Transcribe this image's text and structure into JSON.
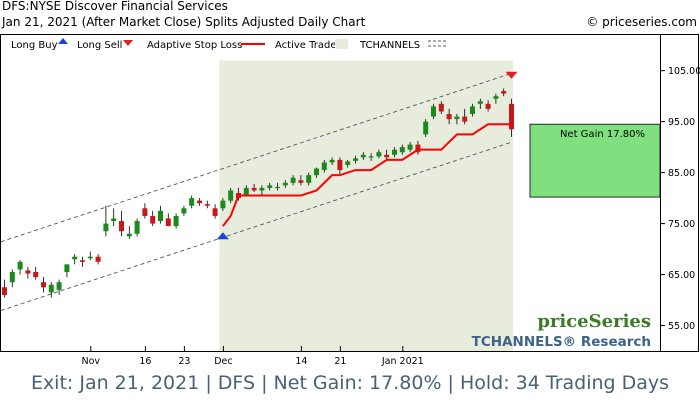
{
  "header": {
    "title": "DFS:NYSE Discover Financial Services",
    "subtitle": "Jan 21, 2021 (After Market Close)  Splits Adjusted Daily Chart",
    "copyright": "© priceseries.com"
  },
  "legend": {
    "long_buy": "Long Buy",
    "long_sell": "Long Sell",
    "stop_loss": "Adaptive Stop Loss",
    "active_trade": "Active Trade",
    "tchannels": "TCHANNELS"
  },
  "colors": {
    "up_candle": "#1a8a1a",
    "down_candle": "#c41a1a",
    "stop_line": "#ff0000",
    "active_bg": "#e8ecdd",
    "buy_marker": "#1f3fd6",
    "sell_marker": "#e02020",
    "gain_box": "#80e080",
    "footer_text": "#4a6078"
  },
  "branding": {
    "logo": "priceSeries",
    "tchannels_research": "TCHANNELS® Research"
  },
  "net_gain_label": "Net Gain 17.80%",
  "footer": "Exit: Jan 21, 2021 | DFS | Net Gain: 17.80% | Hold: 34 Trading Days",
  "chart_data": {
    "type": "candlestick",
    "title": "DFS:NYSE Discover Financial Services",
    "ylim": [
      50,
      112
    ],
    "y_ticks": [
      55,
      65,
      75,
      85,
      95,
      105
    ],
    "y_tick_labels": [
      "55.00",
      "65.00",
      "75.00",
      "85.00",
      "95.00",
      "105.00"
    ],
    "x_tick_labels": [
      {
        "label": "Nov",
        "index": 11
      },
      {
        "label": "16",
        "index": 18
      },
      {
        "label": "23",
        "index": 23
      },
      {
        "label": "Dec",
        "index": 28
      },
      {
        "label": "14",
        "index": 38
      },
      {
        "label": "21",
        "index": 43
      },
      {
        "label": "Jan 2021",
        "index": 51
      }
    ],
    "candles": [
      {
        "o": 62.5,
        "h": 64.0,
        "l": 60.5,
        "c": 61.0
      },
      {
        "o": 63.5,
        "h": 66.0,
        "l": 62.5,
        "c": 65.5
      },
      {
        "o": 66.0,
        "h": 67.8,
        "l": 65.0,
        "c": 67.5
      },
      {
        "o": 65.8,
        "h": 66.5,
        "l": 64.2,
        "c": 65.2
      },
      {
        "o": 65.5,
        "h": 66.5,
        "l": 64.0,
        "c": 64.5
      },
      {
        "o": 63.5,
        "h": 64.5,
        "l": 61.5,
        "c": 62.5
      },
      {
        "o": 61.5,
        "h": 63.5,
        "l": 60.5,
        "c": 63.0
      },
      {
        "o": 62.0,
        "h": 64.0,
        "l": 61.0,
        "c": 63.5
      },
      {
        "o": 65.5,
        "h": 67.0,
        "l": 64.5,
        "c": 67.0
      },
      {
        "o": 68.0,
        "h": 69.0,
        "l": 67.0,
        "c": 68.5
      },
      {
        "o": 67.8,
        "h": 68.5,
        "l": 66.5,
        "c": 67.5
      },
      {
        "o": 68.2,
        "h": 69.5,
        "l": 67.8,
        "c": 68.5
      },
      {
        "o": 68.5,
        "h": 69.0,
        "l": 67.0,
        "c": 67.5
      },
      {
        "o": 73.5,
        "h": 78.5,
        "l": 72.5,
        "c": 75.0
      },
      {
        "o": 75.5,
        "h": 78.0,
        "l": 74.5,
        "c": 76.0
      },
      {
        "o": 75.5,
        "h": 77.5,
        "l": 72.5,
        "c": 73.5
      },
      {
        "o": 72.5,
        "h": 74.5,
        "l": 72.0,
        "c": 73.0
      },
      {
        "o": 73.0,
        "h": 76.0,
        "l": 72.5,
        "c": 75.5
      },
      {
        "o": 78.0,
        "h": 79.0,
        "l": 76.0,
        "c": 76.5
      },
      {
        "o": 76.5,
        "h": 77.5,
        "l": 74.5,
        "c": 75.0
      },
      {
        "o": 75.5,
        "h": 78.5,
        "l": 75.0,
        "c": 77.5
      },
      {
        "o": 76.0,
        "h": 77.0,
        "l": 74.5,
        "c": 74.5
      },
      {
        "o": 74.5,
        "h": 77.0,
        "l": 74.0,
        "c": 76.5
      },
      {
        "o": 77.0,
        "h": 78.5,
        "l": 76.5,
        "c": 78.0
      },
      {
        "o": 78.5,
        "h": 80.5,
        "l": 78.0,
        "c": 80.0
      },
      {
        "o": 79.5,
        "h": 80.0,
        "l": 78.5,
        "c": 79.0
      },
      {
        "o": 78.8,
        "h": 79.5,
        "l": 78.0,
        "c": 78.5
      },
      {
        "o": 78.0,
        "h": 78.8,
        "l": 76.0,
        "c": 76.5
      },
      {
        "o": 78.0,
        "h": 80.0,
        "l": 77.5,
        "c": 79.5
      },
      {
        "o": 79.5,
        "h": 82.0,
        "l": 79.0,
        "c": 81.5
      },
      {
        "o": 81.0,
        "h": 82.0,
        "l": 79.5,
        "c": 80.0
      },
      {
        "o": 80.5,
        "h": 82.5,
        "l": 80.5,
        "c": 82.0
      },
      {
        "o": 82.0,
        "h": 82.8,
        "l": 81.2,
        "c": 81.5
      },
      {
        "o": 81.5,
        "h": 82.5,
        "l": 80.5,
        "c": 82.0
      },
      {
        "o": 82.0,
        "h": 83.0,
        "l": 81.5,
        "c": 82.5
      },
      {
        "o": 82.0,
        "h": 83.0,
        "l": 81.5,
        "c": 82.2
      },
      {
        "o": 82.5,
        "h": 83.5,
        "l": 82.0,
        "c": 83.0
      },
      {
        "o": 83.0,
        "h": 84.5,
        "l": 82.5,
        "c": 84.0
      },
      {
        "o": 83.5,
        "h": 84.5,
        "l": 82.5,
        "c": 83.0
      },
      {
        "o": 83.0,
        "h": 85.0,
        "l": 82.5,
        "c": 84.5
      },
      {
        "o": 84.5,
        "h": 86.0,
        "l": 84.0,
        "c": 85.8
      },
      {
        "o": 85.5,
        "h": 87.5,
        "l": 85.0,
        "c": 87.0
      },
      {
        "o": 87.0,
        "h": 88.0,
        "l": 86.5,
        "c": 87.5
      },
      {
        "o": 87.5,
        "h": 88.0,
        "l": 84.5,
        "c": 85.5
      },
      {
        "o": 86.5,
        "h": 87.5,
        "l": 86.0,
        "c": 87.2
      },
      {
        "o": 87.3,
        "h": 88.3,
        "l": 86.8,
        "c": 87.8
      },
      {
        "o": 88.0,
        "h": 89.0,
        "l": 87.5,
        "c": 88.5
      },
      {
        "o": 88.0,
        "h": 88.8,
        "l": 87.3,
        "c": 88.2
      },
      {
        "o": 88.2,
        "h": 89.5,
        "l": 87.8,
        "c": 89.0
      },
      {
        "o": 88.5,
        "h": 89.5,
        "l": 87.5,
        "c": 88.0
      },
      {
        "o": 88.5,
        "h": 90.0,
        "l": 88.0,
        "c": 89.5
      },
      {
        "o": 89.0,
        "h": 90.5,
        "l": 88.5,
        "c": 90.0
      },
      {
        "o": 89.5,
        "h": 91.0,
        "l": 89.0,
        "c": 90.5
      },
      {
        "o": 90.5,
        "h": 91.2,
        "l": 88.5,
        "c": 89.0
      },
      {
        "o": 92.5,
        "h": 95.5,
        "l": 92.0,
        "c": 95.0
      },
      {
        "o": 96.0,
        "h": 98.5,
        "l": 95.5,
        "c": 98.0
      },
      {
        "o": 98.5,
        "h": 99.0,
        "l": 96.5,
        "c": 97.0
      },
      {
        "o": 96.5,
        "h": 97.5,
        "l": 94.5,
        "c": 95.5
      },
      {
        "o": 95.5,
        "h": 96.5,
        "l": 94.5,
        "c": 96.0
      },
      {
        "o": 96.0,
        "h": 97.5,
        "l": 94.5,
        "c": 95.0
      },
      {
        "o": 96.5,
        "h": 98.5,
        "l": 96.0,
        "c": 98.0
      },
      {
        "o": 98.5,
        "h": 99.5,
        "l": 97.5,
        "c": 99.0
      },
      {
        "o": 98.5,
        "h": 99.2,
        "l": 97.0,
        "c": 97.5
      },
      {
        "o": 99.5,
        "h": 100.5,
        "l": 98.5,
        "c": 100.0
      },
      {
        "o": 101.0,
        "h": 101.5,
        "l": 100.0,
        "c": 100.5
      },
      {
        "o": 98.5,
        "h": 99.5,
        "l": 92.0,
        "c": 93.5
      }
    ],
    "stop_loss": [
      {
        "i": 28,
        "v": 74.5
      },
      {
        "i": 29,
        "v": 76.5
      },
      {
        "i": 30,
        "v": 80.5
      },
      {
        "i": 38,
        "v": 80.5
      },
      {
        "i": 40,
        "v": 81.5
      },
      {
        "i": 42,
        "v": 84.5
      },
      {
        "i": 43,
        "v": 84.5
      },
      {
        "i": 45,
        "v": 85.5
      },
      {
        "i": 47,
        "v": 85.5
      },
      {
        "i": 49,
        "v": 87.5
      },
      {
        "i": 51,
        "v": 87.5
      },
      {
        "i": 53,
        "v": 89.5
      },
      {
        "i": 56,
        "v": 89.5
      },
      {
        "i": 58,
        "v": 92.5
      },
      {
        "i": 60,
        "v": 92.5
      },
      {
        "i": 62,
        "v": 94.5
      },
      {
        "i": 65,
        "v": 94.5
      }
    ],
    "channel": {
      "upper": {
        "i0": -1,
        "v0": 71.0,
        "i1": 65,
        "v1": 104.5
      },
      "lower": {
        "i0": -1,
        "v0": 57.5,
        "i1": 65,
        "v1": 91.0
      }
    },
    "entry": {
      "index": 28,
      "price": 72.9
    },
    "exit": {
      "index": 65,
      "price": 104.0
    },
    "active_trade": {
      "start_index": 28,
      "end_index": 65
    },
    "gain_range": [
      80.2,
      94.5
    ]
  }
}
